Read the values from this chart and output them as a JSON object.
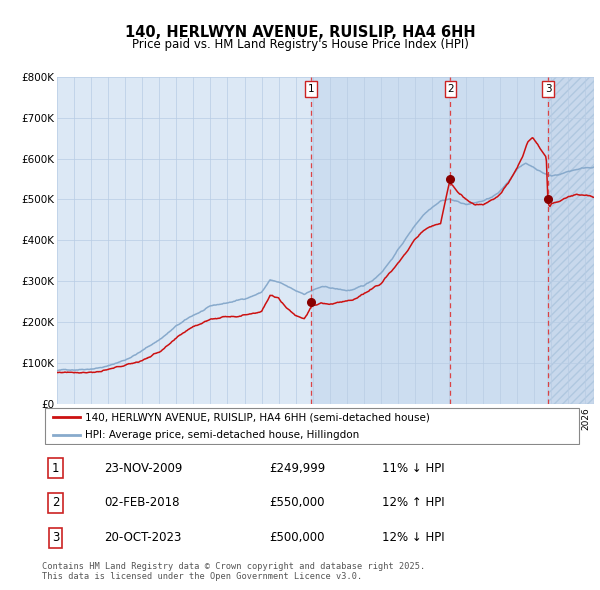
{
  "title": "140, HERLWYN AVENUE, RUISLIP, HA4 6HH",
  "subtitle": "Price paid vs. HM Land Registry's House Price Index (HPI)",
  "ylim": [
    0,
    800000
  ],
  "yticks": [
    0,
    100000,
    200000,
    300000,
    400000,
    500000,
    600000,
    700000,
    800000
  ],
  "ytick_labels": [
    "£0",
    "£100K",
    "£200K",
    "£300K",
    "£400K",
    "£500K",
    "£600K",
    "£700K",
    "£800K"
  ],
  "fig_bg_color": "#ffffff",
  "plot_bg_color": "#dce8f5",
  "grid_color": "#b8cce4",
  "hpi_color": "#88aacc",
  "price_color": "#cc1111",
  "dashed_line_color": "#dd3333",
  "shade_color": "#ccddf0",
  "hatch_color": "#c8d8ec",
  "transactions": [
    {
      "label": "1",
      "date_str": "23-NOV-2009",
      "year": 2009.9,
      "price": 249999,
      "change": "11% ↓ HPI"
    },
    {
      "label": "2",
      "date_str": "02-FEB-2018",
      "year": 2018.08,
      "price": 550000,
      "change": "12% ↑ HPI"
    },
    {
      "label": "3",
      "date_str": "20-OCT-2023",
      "year": 2023.8,
      "price": 500000,
      "change": "12% ↓ HPI"
    }
  ],
  "legend_line1": "140, HERLWYN AVENUE, RUISLIP, HA4 6HH (semi-detached house)",
  "legend_line2": "HPI: Average price, semi-detached house, Hillingdon",
  "footer_line1": "Contains HM Land Registry data © Crown copyright and database right 2025.",
  "footer_line2": "This data is licensed under the Open Government Licence v3.0.",
  "xmin": 1995,
  "xmax": 2026.5
}
